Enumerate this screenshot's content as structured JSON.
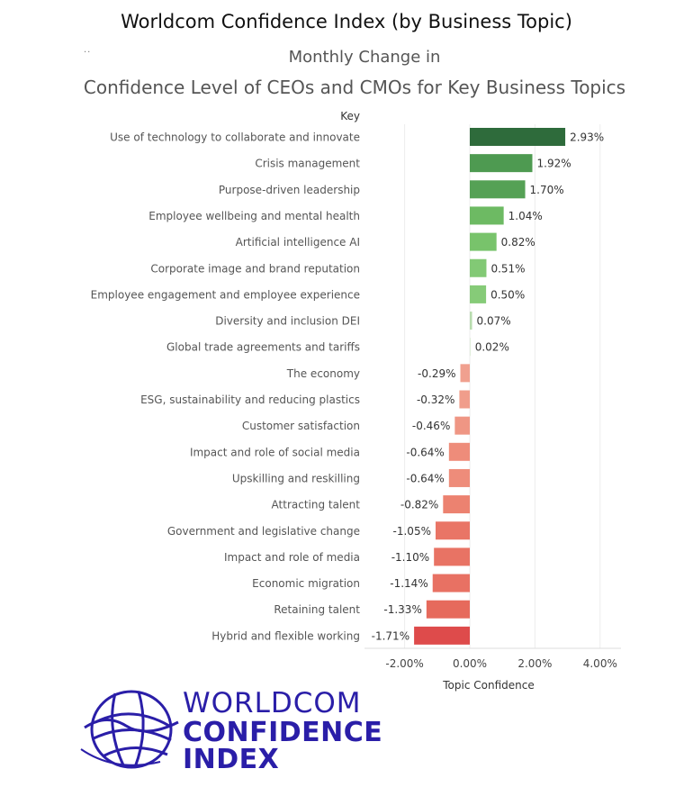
{
  "header": {
    "title": "Worldcom Confidence Index (by Business Topic)",
    "dots": "..",
    "subtitle_line1": "Monthly Change in",
    "subtitle_line2": "Confidence Level of CEOs and CMOs for Key Business Topics"
  },
  "logo": {
    "line1": "WORLDCOM",
    "line2": "CONFIDENCE",
    "line3": "INDEX",
    "color": "#2a1ea8"
  },
  "chart_data": {
    "type": "bar",
    "orientation": "horizontal",
    "key_label": "Key",
    "xlabel": "Topic Confidence",
    "xlim": [
      -0.03,
      0.046
    ],
    "xticks": [
      -0.02,
      0.0,
      0.02,
      0.04
    ],
    "xtick_labels": [
      "-2.00%",
      "0.00%",
      "2.00%",
      "4.00%"
    ],
    "grid": true,
    "categories": [
      "Use of technology to collaborate and innovate",
      "Crisis management",
      "Purpose-driven leadership",
      "Employee wellbeing and mental health",
      "Artificial intelligence AI",
      "Corporate image and brand reputation",
      "Employee engagement and employee experience",
      "Diversity and inclusion DEI",
      "Global trade agreements and tariffs",
      "The economy",
      "ESG, sustainability and reducing plastics",
      "Customer satisfaction",
      "Impact and role of social media",
      "Upskilling and reskilling",
      "Attracting talent",
      "Government and legislative change",
      "Impact and role of media",
      "Economic migration",
      "Retaining talent",
      "Hybrid and flexible working"
    ],
    "values": [
      0.0293,
      0.0192,
      0.017,
      0.0104,
      0.0082,
      0.0051,
      0.005,
      0.0007,
      0.0002,
      -0.0029,
      -0.0032,
      -0.0046,
      -0.0064,
      -0.0064,
      -0.0082,
      -0.0105,
      -0.011,
      -0.0114,
      -0.0133,
      -0.0171
    ],
    "value_labels": [
      "2.93%",
      "1.92%",
      "1.70%",
      "1.04%",
      "0.82%",
      "0.51%",
      "0.50%",
      "0.07%",
      "0.02%",
      "-0.29%",
      "-0.32%",
      "-0.46%",
      "-0.64%",
      "-0.64%",
      "-0.82%",
      "-1.05%",
      "-1.10%",
      "-1.14%",
      "-1.33%",
      "-1.71%"
    ],
    "colors": [
      "#2e6b3b",
      "#4e9a51",
      "#55a155",
      "#6dba63",
      "#78c36b",
      "#82c975",
      "#86cb78",
      "#b8dcae",
      "#e0eeda",
      "#f0a08f",
      "#f09d8b",
      "#ef9684",
      "#ee8c7a",
      "#ee8c7a",
      "#ec8270",
      "#e97566",
      "#e87364",
      "#e87163",
      "#e66a5c",
      "#de4b4b"
    ]
  }
}
